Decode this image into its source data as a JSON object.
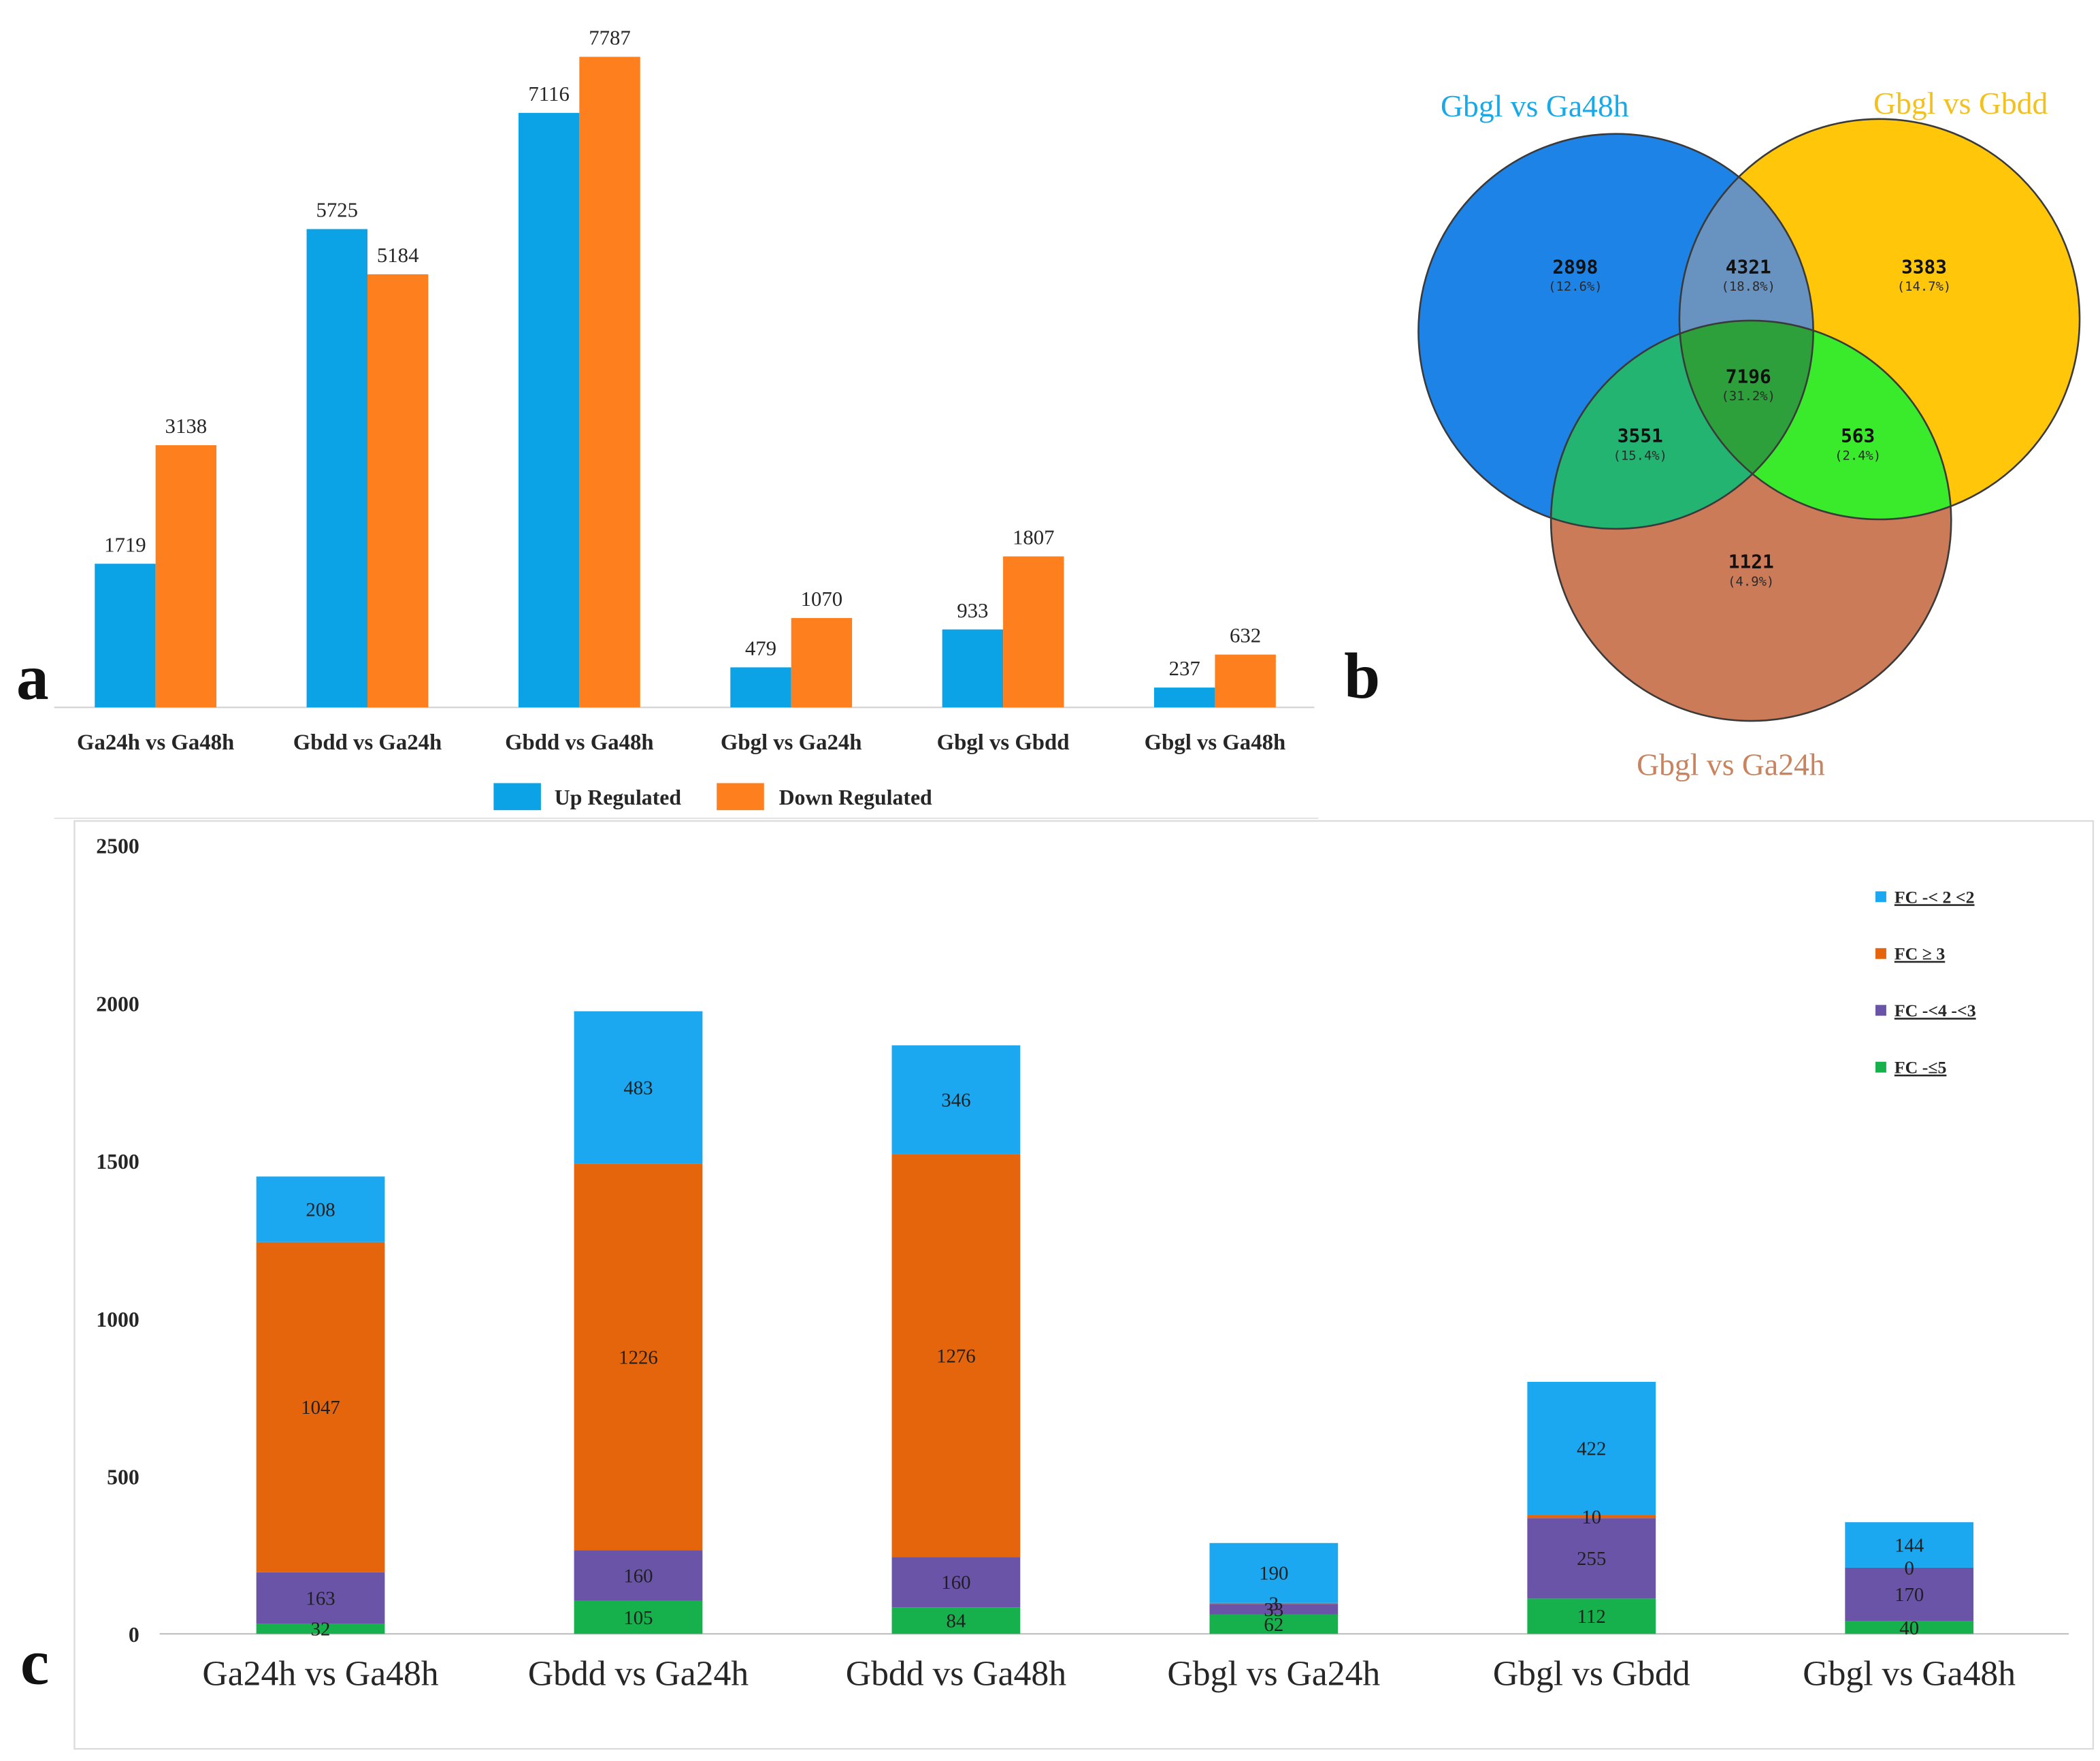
{
  "figure": {
    "labels": {
      "a": "a",
      "b": "b",
      "c": "c"
    }
  },
  "chart_data": [
    {
      "type": "bar",
      "title": "",
      "xlabel": "",
      "ylabel": "",
      "categories": [
        "Ga24h vs Ga48h",
        "Gbdd vs Ga24h",
        "Gbdd vs Ga48h",
        "Gbgl vs Ga24h",
        "Gbgl vs Gbdd",
        "Gbgl vs Ga48h"
      ],
      "series": [
        {
          "name": "Up Regulated",
          "values": [
            1719,
            5725,
            7116,
            479,
            933,
            237
          ],
          "color": "#0ba3e6"
        },
        {
          "name": "Down Regulated",
          "values": [
            3138,
            5184,
            7787,
            1070,
            1807,
            632
          ],
          "color": "#fe7f1e"
        }
      ],
      "legend": "bottom",
      "grid": false,
      "data_labels": true
    },
    {
      "type": "bar",
      "stacked": true,
      "title": "",
      "xlabel": "",
      "ylabel": "",
      "categories": [
        "Ga24h vs Ga48h",
        "Gbdd vs Ga24h",
        "Gbdd vs Ga48h",
        "Gbgl vs Ga24h",
        "Gbgl vs Gbdd",
        "Gbgl vs Ga48h"
      ],
      "series": [
        {
          "name": "FC -≤5",
          "values": [
            32,
            105,
            84,
            62,
            112,
            40
          ],
          "color": "#16b14d"
        },
        {
          "name": "FC -<4 -<3",
          "values": [
            163,
            160,
            160,
            33,
            255,
            170
          ],
          "color": "#6a54a8"
        },
        {
          "name": "FC ≥ 3",
          "values": [
            1047,
            1226,
            1276,
            3,
            10,
            0
          ],
          "color": "#e4650c"
        },
        {
          "name": "FC -< 2 <2",
          "values": [
            208,
            483,
            346,
            190,
            422,
            144
          ],
          "color": "#1ba8f0"
        }
      ],
      "ylim": [
        0,
        2500
      ],
      "yticks": [
        0,
        500,
        1000,
        1500,
        2000,
        2500
      ],
      "legend": "top-right",
      "grid": false,
      "data_labels": true
    }
  ],
  "venn": {
    "sets": [
      {
        "name": "Gbgl vs Ga48h",
        "label_color": "#18a9e8"
      },
      {
        "name": "Gbgl vs Gbdd",
        "label_color": "#f3c11d"
      },
      {
        "name": "Gbgl vs Ga24h",
        "label_color": "#c9845f"
      }
    ],
    "regions": [
      {
        "membership": [
          true,
          false,
          false
        ],
        "count": "2898",
        "percent": "(12.6%)",
        "color": "#1e83e6"
      },
      {
        "membership": [
          true,
          true,
          false
        ],
        "count": "4321",
        "percent": "(18.8%)",
        "color": "#6893c0"
      },
      {
        "membership": [
          false,
          true,
          false
        ],
        "count": "3383",
        "percent": "(14.7%)",
        "color": "#ffc60a"
      },
      {
        "membership": [
          true,
          true,
          true
        ],
        "count": "7196",
        "percent": "(31.2%)",
        "color": "#2d9f3b"
      },
      {
        "membership": [
          true,
          false,
          true
        ],
        "count": "3551",
        "percent": "(15.4%)",
        "color": "#24b472"
      },
      {
        "membership": [
          false,
          true,
          true
        ],
        "count": "563",
        "percent": "(2.4%)",
        "color": "#3aeb2b"
      },
      {
        "membership": [
          false,
          false,
          true
        ],
        "count": "1121",
        "percent": "(4.9%)",
        "color": "#cc7b58"
      }
    ]
  }
}
